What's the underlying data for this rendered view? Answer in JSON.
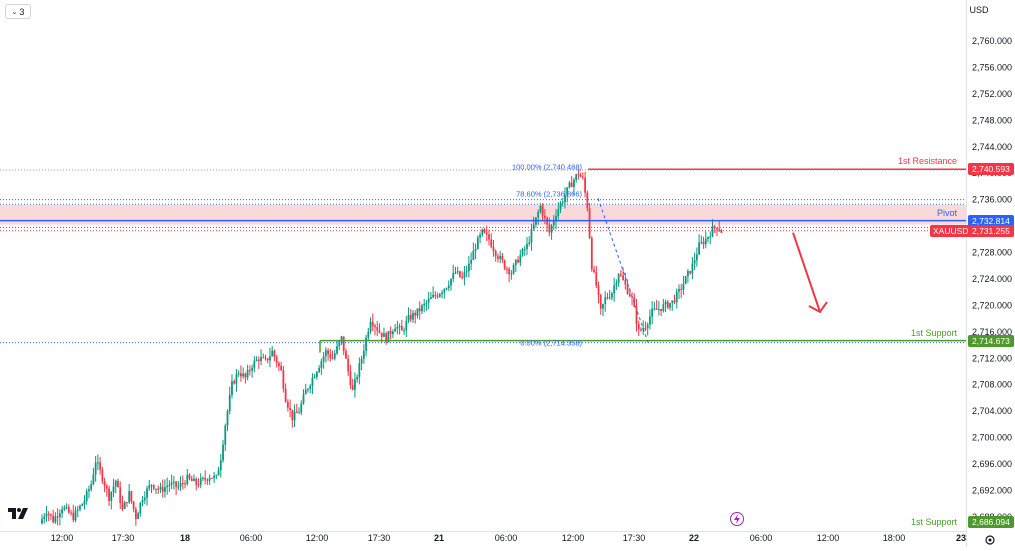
{
  "header": {
    "collapse_icon": "chevron-down-icon",
    "indicator_count": "3",
    "currency": "USD"
  },
  "toolbar": {
    "logo_icon": "tradingview-logo-icon",
    "settings_icon": "gear-icon",
    "event_icon": "lightning-icon"
  },
  "colors": {
    "up": "#089981",
    "down": "#f23645",
    "resistance": "#f23645",
    "support": "#4c9a2a",
    "pivot": "#2962ff",
    "zone": "#fbd9da",
    "fib": "#2962ff"
  },
  "chart_data": {
    "type": "candlestick",
    "symbol": "XAUUSD",
    "y_axis": {
      "ticks": [
        "2,760.000",
        "2,756.000",
        "2,752.000",
        "2,748.000",
        "2,744.000",
        "2,740.000",
        "2,736.000",
        "2,732.000",
        "2,728.000",
        "2,724.000",
        "2,720.000",
        "2,716.000",
        "2,712.000",
        "2,708.000",
        "2,704.000",
        "2,700.000",
        "2,696.000",
        "2,692.000",
        "2,688.000"
      ],
      "range": [
        2686,
        2763
      ]
    },
    "x_axis": {
      "ticks": [
        "12:00",
        "17:30",
        "18",
        "06:00",
        "12:00",
        "17:30",
        "21",
        "06:00",
        "12:00",
        "17:30",
        "22",
        "06:00",
        "12:00",
        "18:00",
        "23"
      ]
    },
    "levels": [
      {
        "label": "1st Resistance",
        "value": 2740.593,
        "price_label": "2,740.593",
        "role": "resistance"
      },
      {
        "label": "Pivot",
        "value": 2732.814,
        "price_label": "2,732.814",
        "role": "pivot"
      },
      {
        "label": "1st Support",
        "value": 2714.673,
        "price_label": "2,714.673",
        "role": "support"
      },
      {
        "label": "1st Support",
        "value": 2686.094,
        "price_label": "2,686.094",
        "role": "support"
      }
    ],
    "current_price": {
      "symbol": "XAUUSD",
      "value": 2731.255,
      "label": "2,731.255"
    },
    "fibonacci": [
      {
        "label": "100.00% (2,740.488)",
        "value": 2740.488
      },
      {
        "label": "78.60% (2,736.866)",
        "value": 2736.866
      },
      {
        "label": "0.00% (2,714.358)",
        "value": 2714.358
      }
    ],
    "pivot_zone": [
      2732.2,
      2735.2
    ],
    "projection": {
      "from": 2731.0,
      "to": 2719.0,
      "direction": "down"
    },
    "price_path": [
      [
        0,
        2687
      ],
      [
        0.3,
        2689
      ],
      [
        0.6,
        2687.5
      ],
      [
        1.0,
        2689.5
      ],
      [
        1.5,
        2688
      ],
      [
        2.0,
        2690.5
      ],
      [
        2.3,
        2693
      ],
      [
        2.5,
        2696.5
      ],
      [
        2.8,
        2694
      ],
      [
        3.1,
        2691
      ],
      [
        3.4,
        2693.5
      ],
      [
        3.7,
        2689
      ],
      [
        4.0,
        2691.5
      ],
      [
        4.3,
        2688
      ],
      [
        4.6,
        2691
      ],
      [
        5.0,
        2693
      ],
      [
        5.4,
        2692
      ],
      [
        5.8,
        2693
      ],
      [
        6.2,
        2692.5
      ],
      [
        6.6,
        2693.8
      ],
      [
        7.0,
        2693
      ],
      [
        7.3,
        2693.5
      ],
      [
        7.6,
        2694.2
      ],
      [
        7.9,
        2693.8
      ],
      [
        8.1,
        2697
      ],
      [
        8.3,
        2702
      ],
      [
        8.6,
        2708
      ],
      [
        8.9,
        2710
      ],
      [
        9.2,
        2709
      ],
      [
        9.5,
        2711
      ],
      [
        9.8,
        2712
      ],
      [
        10.1,
        2711.5
      ],
      [
        10.4,
        2713
      ],
      [
        10.8,
        2710
      ],
      [
        11.0,
        2706
      ],
      [
        11.3,
        2703
      ],
      [
        11.6,
        2704
      ],
      [
        11.9,
        2707
      ],
      [
        12.2,
        2709
      ],
      [
        12.5,
        2711
      ],
      [
        12.8,
        2713
      ],
      [
        13.1,
        2712
      ],
      [
        13.5,
        2715
      ],
      [
        13.8,
        2710
      ],
      [
        14.0,
        2707
      ],
      [
        14.4,
        2712
      ],
      [
        14.8,
        2718
      ],
      [
        15.2,
        2716
      ],
      [
        15.5,
        2715
      ],
      [
        15.9,
        2717
      ],
      [
        16.2,
        2716
      ],
      [
        16.5,
        2718
      ],
      [
        16.9,
        2719
      ],
      [
        17.2,
        2720
      ],
      [
        17.5,
        2721
      ],
      [
        17.9,
        2722
      ],
      [
        18.2,
        2723
      ],
      [
        18.6,
        2725
      ],
      [
        18.9,
        2724
      ],
      [
        19.2,
        2726
      ],
      [
        19.5,
        2729
      ],
      [
        19.8,
        2731
      ],
      [
        20.1,
        2730
      ],
      [
        20.4,
        2728
      ],
      [
        20.8,
        2726
      ],
      [
        21.1,
        2725
      ],
      [
        21.4,
        2727
      ],
      [
        21.8,
        2729
      ],
      [
        22.2,
        2733
      ],
      [
        22.4,
        2735
      ],
      [
        22.6,
        2733
      ],
      [
        22.8,
        2731
      ],
      [
        23.1,
        2734
      ],
      [
        23.4,
        2736
      ],
      [
        23.7,
        2738
      ],
      [
        23.9,
        2739
      ],
      [
        24.1,
        2740
      ],
      [
        24.3,
        2739
      ],
      [
        24.5,
        2735
      ],
      [
        24.7,
        2726
      ],
      [
        24.9,
        2723
      ],
      [
        25.1,
        2719
      ],
      [
        25.3,
        2721
      ],
      [
        25.6,
        2722
      ],
      [
        25.9,
        2725
      ],
      [
        26.2,
        2723
      ],
      [
        26.5,
        2721
      ],
      [
        26.8,
        2716
      ],
      [
        27.1,
        2717
      ],
      [
        27.4,
        2719
      ],
      [
        27.7,
        2719.5
      ],
      [
        28.0,
        2720
      ],
      [
        28.3,
        2720.5
      ],
      [
        28.6,
        2722
      ],
      [
        28.9,
        2724
      ],
      [
        29.2,
        2726
      ],
      [
        29.5,
        2729
      ],
      [
        29.8,
        2730
      ],
      [
        30.1,
        2731.5
      ],
      [
        30.3,
        2732
      ],
      [
        30.5,
        2731.2
      ]
    ]
  }
}
